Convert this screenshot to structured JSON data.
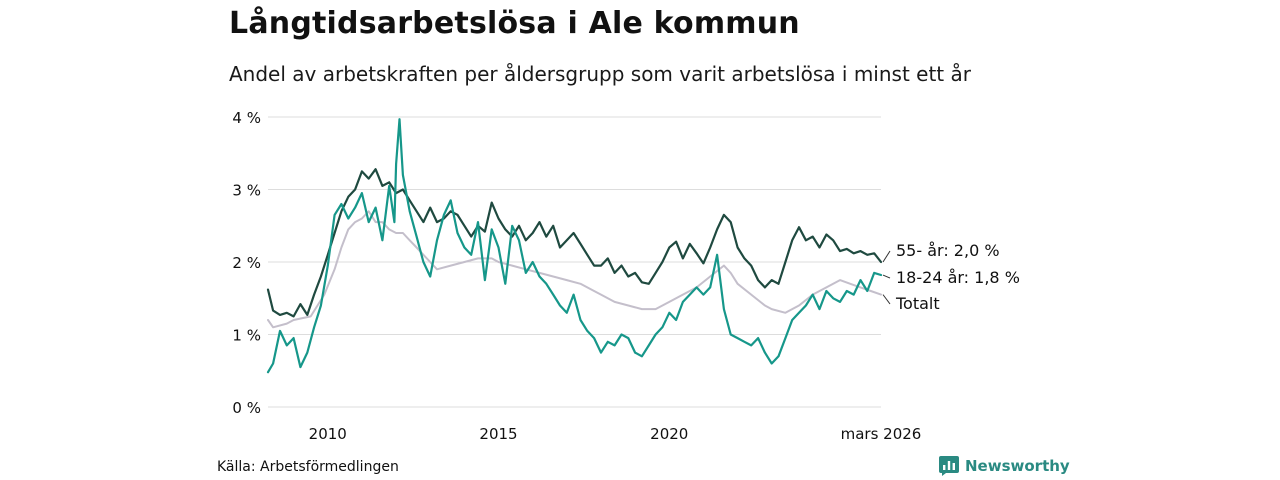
{
  "header": {
    "title": "Långtidsarbetslösa i Ale kommun",
    "subtitle": "Andel av arbetskraften per åldersgrupp som varit arbetslösa i minst ett år"
  },
  "footer": {
    "source": "Källa: Arbetsförmedlingen",
    "brand": "Newsworthy"
  },
  "colors": {
    "age55": "#1f4a40",
    "age18_24": "#16978a",
    "total": "#c4bfcb",
    "grid": "#dddddd",
    "brand": "#2a8a82"
  },
  "chart_data": {
    "type": "line",
    "title": "Långtidsarbetslösa i Ale kommun",
    "subtitle": "Andel av arbetskraften per åldersgrupp som varit arbetslösa i minst ett år",
    "xlabel": "",
    "ylabel": "",
    "x_range": [
      2008.25,
      2026.2
    ],
    "ylim": [
      0,
      4
    ],
    "y_ticks": [
      0,
      1,
      2,
      3,
      4
    ],
    "y_tick_labels": [
      "0 %",
      "1 %",
      "2 %",
      "3 %",
      "4 %"
    ],
    "x_ticks": [
      2010,
      2015,
      2020,
      2026.2
    ],
    "x_tick_labels": [
      "2010",
      "2015",
      "2020",
      "mars 2026"
    ],
    "grid": true,
    "series": [
      {
        "name": "55- år",
        "label": "55- år: 2,0 %",
        "key": "age55",
        "points": [
          [
            2008.25,
            1.62
          ],
          [
            2008.4,
            1.33
          ],
          [
            2008.6,
            1.27
          ],
          [
            2008.8,
            1.3
          ],
          [
            2009.0,
            1.25
          ],
          [
            2009.2,
            1.42
          ],
          [
            2009.4,
            1.27
          ],
          [
            2009.6,
            1.55
          ],
          [
            2009.8,
            1.8
          ],
          [
            2010.0,
            2.1
          ],
          [
            2010.2,
            2.4
          ],
          [
            2010.4,
            2.7
          ],
          [
            2010.6,
            2.9
          ],
          [
            2010.8,
            3.0
          ],
          [
            2011.0,
            3.25
          ],
          [
            2011.2,
            3.15
          ],
          [
            2011.4,
            3.28
          ],
          [
            2011.6,
            3.05
          ],
          [
            2011.8,
            3.1
          ],
          [
            2012.0,
            2.95
          ],
          [
            2012.2,
            3.0
          ],
          [
            2012.4,
            2.85
          ],
          [
            2012.6,
            2.7
          ],
          [
            2012.8,
            2.55
          ],
          [
            2013.0,
            2.75
          ],
          [
            2013.2,
            2.55
          ],
          [
            2013.4,
            2.6
          ],
          [
            2013.6,
            2.7
          ],
          [
            2013.8,
            2.65
          ],
          [
            2014.0,
            2.5
          ],
          [
            2014.2,
            2.35
          ],
          [
            2014.4,
            2.5
          ],
          [
            2014.6,
            2.42
          ],
          [
            2014.8,
            2.82
          ],
          [
            2015.0,
            2.6
          ],
          [
            2015.2,
            2.45
          ],
          [
            2015.4,
            2.35
          ],
          [
            2015.6,
            2.5
          ],
          [
            2015.8,
            2.3
          ],
          [
            2016.0,
            2.4
          ],
          [
            2016.2,
            2.55
          ],
          [
            2016.4,
            2.35
          ],
          [
            2016.6,
            2.5
          ],
          [
            2016.8,
            2.2
          ],
          [
            2017.0,
            2.3
          ],
          [
            2017.2,
            2.4
          ],
          [
            2017.4,
            2.25
          ],
          [
            2017.6,
            2.1
          ],
          [
            2017.8,
            1.95
          ],
          [
            2018.0,
            1.95
          ],
          [
            2018.2,
            2.05
          ],
          [
            2018.4,
            1.85
          ],
          [
            2018.6,
            1.95
          ],
          [
            2018.8,
            1.8
          ],
          [
            2019.0,
            1.85
          ],
          [
            2019.2,
            1.72
          ],
          [
            2019.4,
            1.7
          ],
          [
            2019.6,
            1.85
          ],
          [
            2019.8,
            2.0
          ],
          [
            2020.0,
            2.2
          ],
          [
            2020.2,
            2.28
          ],
          [
            2020.4,
            2.05
          ],
          [
            2020.6,
            2.25
          ],
          [
            2020.8,
            2.12
          ],
          [
            2021.0,
            1.98
          ],
          [
            2021.2,
            2.2
          ],
          [
            2021.4,
            2.45
          ],
          [
            2021.6,
            2.65
          ],
          [
            2021.8,
            2.55
          ],
          [
            2022.0,
            2.2
          ],
          [
            2022.2,
            2.05
          ],
          [
            2022.4,
            1.95
          ],
          [
            2022.6,
            1.75
          ],
          [
            2022.8,
            1.65
          ],
          [
            2023.0,
            1.75
          ],
          [
            2023.2,
            1.7
          ],
          [
            2023.4,
            2.0
          ],
          [
            2023.6,
            2.3
          ],
          [
            2023.8,
            2.48
          ],
          [
            2024.0,
            2.3
          ],
          [
            2024.2,
            2.35
          ],
          [
            2024.4,
            2.2
          ],
          [
            2024.6,
            2.38
          ],
          [
            2024.8,
            2.3
          ],
          [
            2025.0,
            2.15
          ],
          [
            2025.2,
            2.18
          ],
          [
            2025.4,
            2.12
          ],
          [
            2025.6,
            2.15
          ],
          [
            2025.8,
            2.1
          ],
          [
            2026.0,
            2.12
          ],
          [
            2026.2,
            2.0
          ]
        ]
      },
      {
        "name": "18-24 år",
        "label": "18-24 år: 1,8 %",
        "key": "age18_24",
        "points": [
          [
            2008.25,
            0.48
          ],
          [
            2008.4,
            0.6
          ],
          [
            2008.6,
            1.05
          ],
          [
            2008.8,
            0.85
          ],
          [
            2009.0,
            0.95
          ],
          [
            2009.2,
            0.55
          ],
          [
            2009.4,
            0.75
          ],
          [
            2009.6,
            1.1
          ],
          [
            2009.8,
            1.4
          ],
          [
            2010.0,
            1.95
          ],
          [
            2010.2,
            2.65
          ],
          [
            2010.4,
            2.8
          ],
          [
            2010.6,
            2.6
          ],
          [
            2010.8,
            2.75
          ],
          [
            2011.0,
            2.95
          ],
          [
            2011.2,
            2.55
          ],
          [
            2011.4,
            2.75
          ],
          [
            2011.6,
            2.3
          ],
          [
            2011.8,
            3.05
          ],
          [
            2011.95,
            2.55
          ],
          [
            2012.0,
            3.35
          ],
          [
            2012.1,
            3.97
          ],
          [
            2012.2,
            3.2
          ],
          [
            2012.4,
            2.7
          ],
          [
            2012.6,
            2.35
          ],
          [
            2012.8,
            2.0
          ],
          [
            2013.0,
            1.8
          ],
          [
            2013.2,
            2.3
          ],
          [
            2013.4,
            2.65
          ],
          [
            2013.6,
            2.85
          ],
          [
            2013.8,
            2.4
          ],
          [
            2014.0,
            2.2
          ],
          [
            2014.2,
            2.1
          ],
          [
            2014.4,
            2.55
          ],
          [
            2014.6,
            1.75
          ],
          [
            2014.8,
            2.45
          ],
          [
            2015.0,
            2.2
          ],
          [
            2015.2,
            1.7
          ],
          [
            2015.4,
            2.5
          ],
          [
            2015.6,
            2.3
          ],
          [
            2015.8,
            1.85
          ],
          [
            2016.0,
            2.0
          ],
          [
            2016.2,
            1.8
          ],
          [
            2016.4,
            1.7
          ],
          [
            2016.6,
            1.55
          ],
          [
            2016.8,
            1.4
          ],
          [
            2017.0,
            1.3
          ],
          [
            2017.2,
            1.55
          ],
          [
            2017.4,
            1.2
          ],
          [
            2017.6,
            1.05
          ],
          [
            2017.8,
            0.95
          ],
          [
            2018.0,
            0.75
          ],
          [
            2018.2,
            0.9
          ],
          [
            2018.4,
            0.85
          ],
          [
            2018.6,
            1.0
          ],
          [
            2018.8,
            0.95
          ],
          [
            2019.0,
            0.75
          ],
          [
            2019.2,
            0.7
          ],
          [
            2019.4,
            0.85
          ],
          [
            2019.6,
            1.0
          ],
          [
            2019.8,
            1.1
          ],
          [
            2020.0,
            1.3
          ],
          [
            2020.2,
            1.2
          ],
          [
            2020.4,
            1.45
          ],
          [
            2020.6,
            1.55
          ],
          [
            2020.8,
            1.65
          ],
          [
            2021.0,
            1.55
          ],
          [
            2021.2,
            1.65
          ],
          [
            2021.4,
            2.1
          ],
          [
            2021.6,
            1.35
          ],
          [
            2021.8,
            1.0
          ],
          [
            2022.0,
            0.95
          ],
          [
            2022.2,
            0.9
          ],
          [
            2022.4,
            0.85
          ],
          [
            2022.6,
            0.95
          ],
          [
            2022.8,
            0.75
          ],
          [
            2023.0,
            0.6
          ],
          [
            2023.2,
            0.7
          ],
          [
            2023.4,
            0.95
          ],
          [
            2023.6,
            1.2
          ],
          [
            2023.8,
            1.3
          ],
          [
            2024.0,
            1.4
          ],
          [
            2024.2,
            1.55
          ],
          [
            2024.4,
            1.35
          ],
          [
            2024.6,
            1.6
          ],
          [
            2024.8,
            1.5
          ],
          [
            2025.0,
            1.45
          ],
          [
            2025.2,
            1.6
          ],
          [
            2025.4,
            1.55
          ],
          [
            2025.6,
            1.75
          ],
          [
            2025.8,
            1.6
          ],
          [
            2026.0,
            1.85
          ],
          [
            2026.2,
            1.82
          ]
        ]
      },
      {
        "name": "Totalt",
        "label": "Totalt",
        "key": "total",
        "points": [
          [
            2008.25,
            1.2
          ],
          [
            2008.4,
            1.1
          ],
          [
            2008.8,
            1.15
          ],
          [
            2009.0,
            1.2
          ],
          [
            2009.5,
            1.25
          ],
          [
            2009.9,
            1.55
          ],
          [
            2010.2,
            1.9
          ],
          [
            2010.4,
            2.2
          ],
          [
            2010.6,
            2.45
          ],
          [
            2010.8,
            2.55
          ],
          [
            2011.0,
            2.6
          ],
          [
            2011.2,
            2.7
          ],
          [
            2011.4,
            2.55
          ],
          [
            2011.6,
            2.55
          ],
          [
            2011.8,
            2.45
          ],
          [
            2012.0,
            2.4
          ],
          [
            2012.2,
            2.4
          ],
          [
            2012.4,
            2.3
          ],
          [
            2012.6,
            2.2
          ],
          [
            2012.8,
            2.1
          ],
          [
            2013.0,
            2.0
          ],
          [
            2013.2,
            1.9
          ],
          [
            2013.6,
            1.95
          ],
          [
            2014.0,
            2.0
          ],
          [
            2014.4,
            2.05
          ],
          [
            2014.8,
            2.05
          ],
          [
            2015.0,
            2.0
          ],
          [
            2015.4,
            1.95
          ],
          [
            2015.8,
            1.9
          ],
          [
            2016.2,
            1.85
          ],
          [
            2016.6,
            1.8
          ],
          [
            2017.0,
            1.75
          ],
          [
            2017.4,
            1.7
          ],
          [
            2017.8,
            1.6
          ],
          [
            2018.0,
            1.55
          ],
          [
            2018.4,
            1.45
          ],
          [
            2018.8,
            1.4
          ],
          [
            2019.2,
            1.35
          ],
          [
            2019.6,
            1.35
          ],
          [
            2020.0,
            1.45
          ],
          [
            2020.4,
            1.55
          ],
          [
            2020.8,
            1.65
          ],
          [
            2021.2,
            1.8
          ],
          [
            2021.6,
            1.95
          ],
          [
            2021.8,
            1.85
          ],
          [
            2022.0,
            1.7
          ],
          [
            2022.4,
            1.55
          ],
          [
            2022.8,
            1.4
          ],
          [
            2023.0,
            1.35
          ],
          [
            2023.4,
            1.3
          ],
          [
            2023.8,
            1.4
          ],
          [
            2024.2,
            1.55
          ],
          [
            2024.6,
            1.65
          ],
          [
            2025.0,
            1.75
          ],
          [
            2025.3,
            1.7
          ],
          [
            2025.6,
            1.65
          ],
          [
            2025.9,
            1.6
          ],
          [
            2026.2,
            1.55
          ]
        ]
      }
    ]
  }
}
